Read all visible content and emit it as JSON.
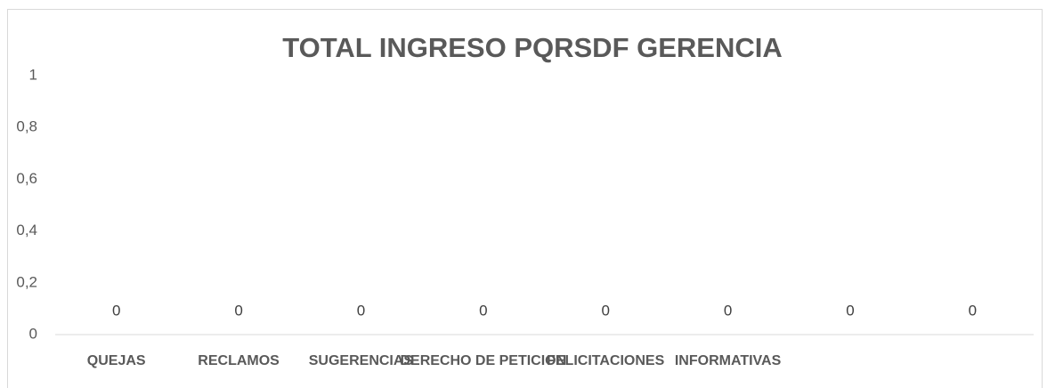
{
  "chart_data": {
    "type": "bar",
    "title": "TOTAL INGRESO PQRSDF GERENCIA",
    "categories": [
      "QUEJAS",
      "RECLAMOS",
      "SUGERENCIAS",
      "DERECHO DE PETICION",
      "FELICITACIONES",
      "INFORMATIVAS",
      null,
      null
    ],
    "values": [
      0,
      0,
      0,
      0,
      0,
      0,
      0,
      0
    ],
    "color": "#4472c4",
    "ylim": [
      0,
      1
    ],
    "yticks": [
      0,
      {
        "value": 0.2,
        "label": "0,2"
      },
      {
        "value": 0.4,
        "label": "0,4"
      },
      {
        "value": 0.6,
        "label": "0,6"
      },
      {
        "value": 0.8,
        "label": "0,8"
      },
      1
    ],
    "grid": false
  }
}
